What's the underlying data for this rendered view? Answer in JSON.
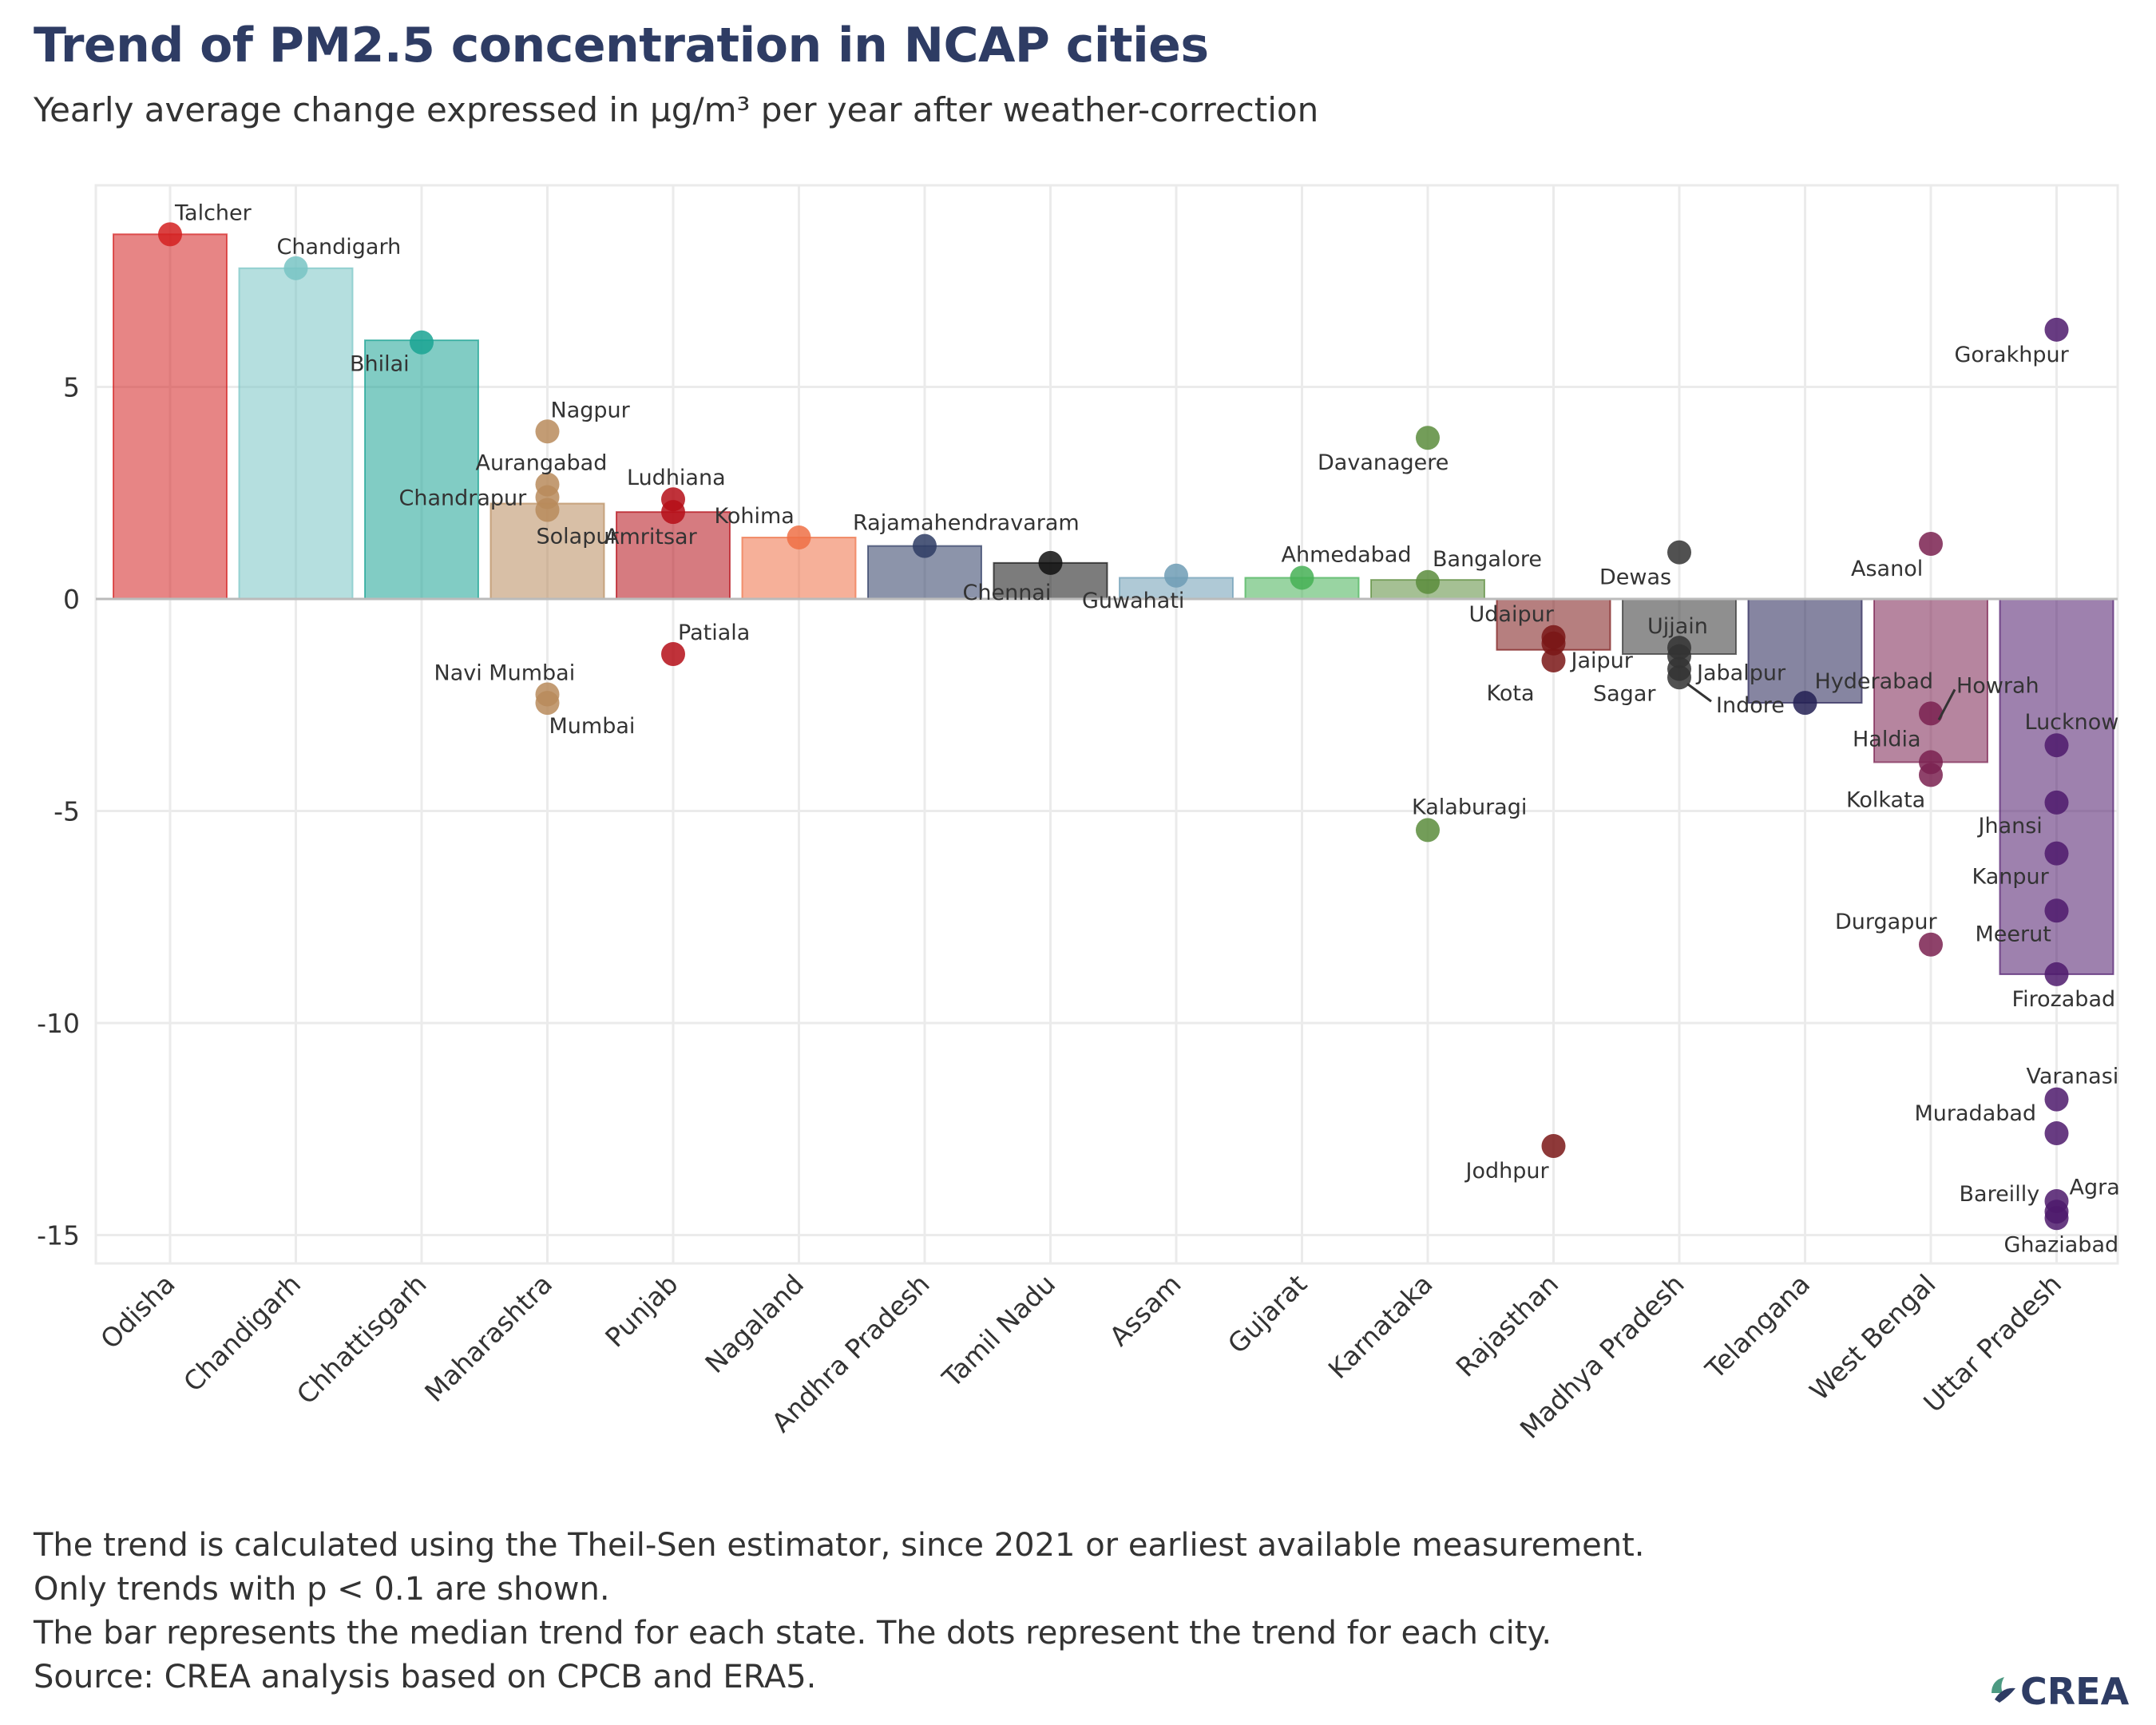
{
  "title": "Trend of PM2.5 concentration in NCAP cities",
  "subtitle": "Yearly average change expressed in µg/m³ per year after weather-correction",
  "notes": [
    "The trend is calculated using the Theil-Sen estimator, since 2021 or earliest available measurement.",
    "Only trends with p < 0.1 are shown.",
    "The bar represents the median trend for each state. The dots represent the trend for each city.",
    "Source: CREA analysis based on CPCB and ERA5."
  ],
  "logo": {
    "text": "CREA",
    "icon": "crea-leaf-icon"
  },
  "chart_data": {
    "type": "bar",
    "title": "Trend of PM2.5 concentration in NCAP cities",
    "ylim": [
      -15.7,
      9.6
    ],
    "yticks": [
      5,
      0,
      -5,
      -10,
      -15
    ],
    "grid": true,
    "categories": [
      "Odisha",
      "Chandigarh",
      "Chhattisgarh",
      "Maharashtra",
      "Punjab",
      "Nagaland",
      "Andhra Pradesh",
      "Tamil Nadu",
      "Assam",
      "Gujarat",
      "Karnataka",
      "Rajasthan",
      "Madhya Pradesh",
      "Telangana",
      "West Bengal",
      "Uttar Pradesh"
    ],
    "bar_values": [
      8.6,
      7.8,
      6.1,
      2.25,
      2.05,
      1.45,
      1.25,
      0.85,
      0.5,
      0.5,
      0.45,
      -1.2,
      -1.3,
      -2.45,
      -3.85,
      -8.85
    ],
    "state_colors": [
      "#d42020",
      "#78c4c4",
      "#1aa393",
      "#b88b5c",
      "#b50e18",
      "#ee7045",
      "#2e3c64",
      "#111111",
      "#6e9cb5",
      "#45b055",
      "#5b8c3c",
      "#7a1616",
      "#333333",
      "#232054",
      "#7a2150",
      "#4e1a6c"
    ],
    "cities": [
      {
        "state": "Odisha",
        "name": "Talcher",
        "value": 8.6
      },
      {
        "state": "Chandigarh",
        "name": "Chandigarh",
        "value": 7.8
      },
      {
        "state": "Chhattisgarh",
        "name": "Bhilai",
        "value": 6.05
      },
      {
        "state": "Maharashtra",
        "name": "Nagpur",
        "value": 3.95
      },
      {
        "state": "Maharashtra",
        "name": "Aurangabad",
        "value": 2.7
      },
      {
        "state": "Maharashtra",
        "name": "Chandrapur",
        "value": 2.4
      },
      {
        "state": "Maharashtra",
        "name": "Solapur",
        "value": 2.1
      },
      {
        "state": "Maharashtra",
        "name": "Navi Mumbai",
        "value": -2.25
      },
      {
        "state": "Maharashtra",
        "name": "Mumbai",
        "value": -2.45
      },
      {
        "state": "Punjab",
        "name": "Ludhiana",
        "value": 2.35
      },
      {
        "state": "Punjab",
        "name": "Amritsar",
        "value": 2.05
      },
      {
        "state": "Punjab",
        "name": "Patiala",
        "value": -1.3
      },
      {
        "state": "Nagaland",
        "name": "Kohima",
        "value": 1.45
      },
      {
        "state": "Andhra Pradesh",
        "name": "Rajamahendravaram",
        "value": 1.25
      },
      {
        "state": "Tamil Nadu",
        "name": "Chennai",
        "value": 0.85
      },
      {
        "state": "Assam",
        "name": "Guwahati",
        "value": 0.55
      },
      {
        "state": "Gujarat",
        "name": "Ahmedabad",
        "value": 0.5
      },
      {
        "state": "Karnataka",
        "name": "Davanagere",
        "value": 3.8
      },
      {
        "state": "Karnataka",
        "name": "Bangalore",
        "value": 0.4
      },
      {
        "state": "Karnataka",
        "name": "Kalaburagi",
        "value": -5.45
      },
      {
        "state": "Rajasthan",
        "name": "Udaipur",
        "value": -0.9
      },
      {
        "state": "Rajasthan",
        "name": "Jaipur",
        "value": -1.05
      },
      {
        "state": "Rajasthan",
        "name": "Kota",
        "value": -1.45
      },
      {
        "state": "Rajasthan",
        "name": "Jodhpur",
        "value": -12.9
      },
      {
        "state": "Madhya Pradesh",
        "name": "Dewas",
        "value": 1.1
      },
      {
        "state": "Madhya Pradesh",
        "name": "Ujjain",
        "value": -1.15
      },
      {
        "state": "Madhya Pradesh",
        "name": "Jabalpur",
        "value": -1.35
      },
      {
        "state": "Madhya Pradesh",
        "name": "Sagar",
        "value": -1.65
      },
      {
        "state": "Madhya Pradesh",
        "name": "Indore",
        "value": -1.85
      },
      {
        "state": "Telangana",
        "name": "Hyderabad",
        "value": -2.45
      },
      {
        "state": "West Bengal",
        "name": "Asanol",
        "value": 1.3
      },
      {
        "state": "West Bengal",
        "name": "Howrah",
        "value": -2.7
      },
      {
        "state": "West Bengal",
        "name": "Haldia",
        "value": -3.85
      },
      {
        "state": "West Bengal",
        "name": "Kolkata",
        "value": -4.15
      },
      {
        "state": "West Bengal",
        "name": "Durgapur",
        "value": -8.15
      },
      {
        "state": "Uttar Pradesh",
        "name": "Gorakhpur",
        "value": 6.35
      },
      {
        "state": "Uttar Pradesh",
        "name": "Lucknow",
        "value": -3.45
      },
      {
        "state": "Uttar Pradesh",
        "name": "Jhansi",
        "value": -4.8
      },
      {
        "state": "Uttar Pradesh",
        "name": "Kanpur",
        "value": -6.0
      },
      {
        "state": "Uttar Pradesh",
        "name": "Meerut",
        "value": -7.35
      },
      {
        "state": "Uttar Pradesh",
        "name": "Firozabad",
        "value": -8.85
      },
      {
        "state": "Uttar Pradesh",
        "name": "Varanasi",
        "value": -11.8
      },
      {
        "state": "Uttar Pradesh",
        "name": "Muradabad",
        "value": -12.6
      },
      {
        "state": "Uttar Pradesh",
        "name": "Bareilly",
        "value": -14.2
      },
      {
        "state": "Uttar Pradesh",
        "name": "Agra",
        "value": -14.45
      },
      {
        "state": "Uttar Pradesh",
        "name": "Ghaziabad",
        "value": -14.6
      }
    ]
  }
}
